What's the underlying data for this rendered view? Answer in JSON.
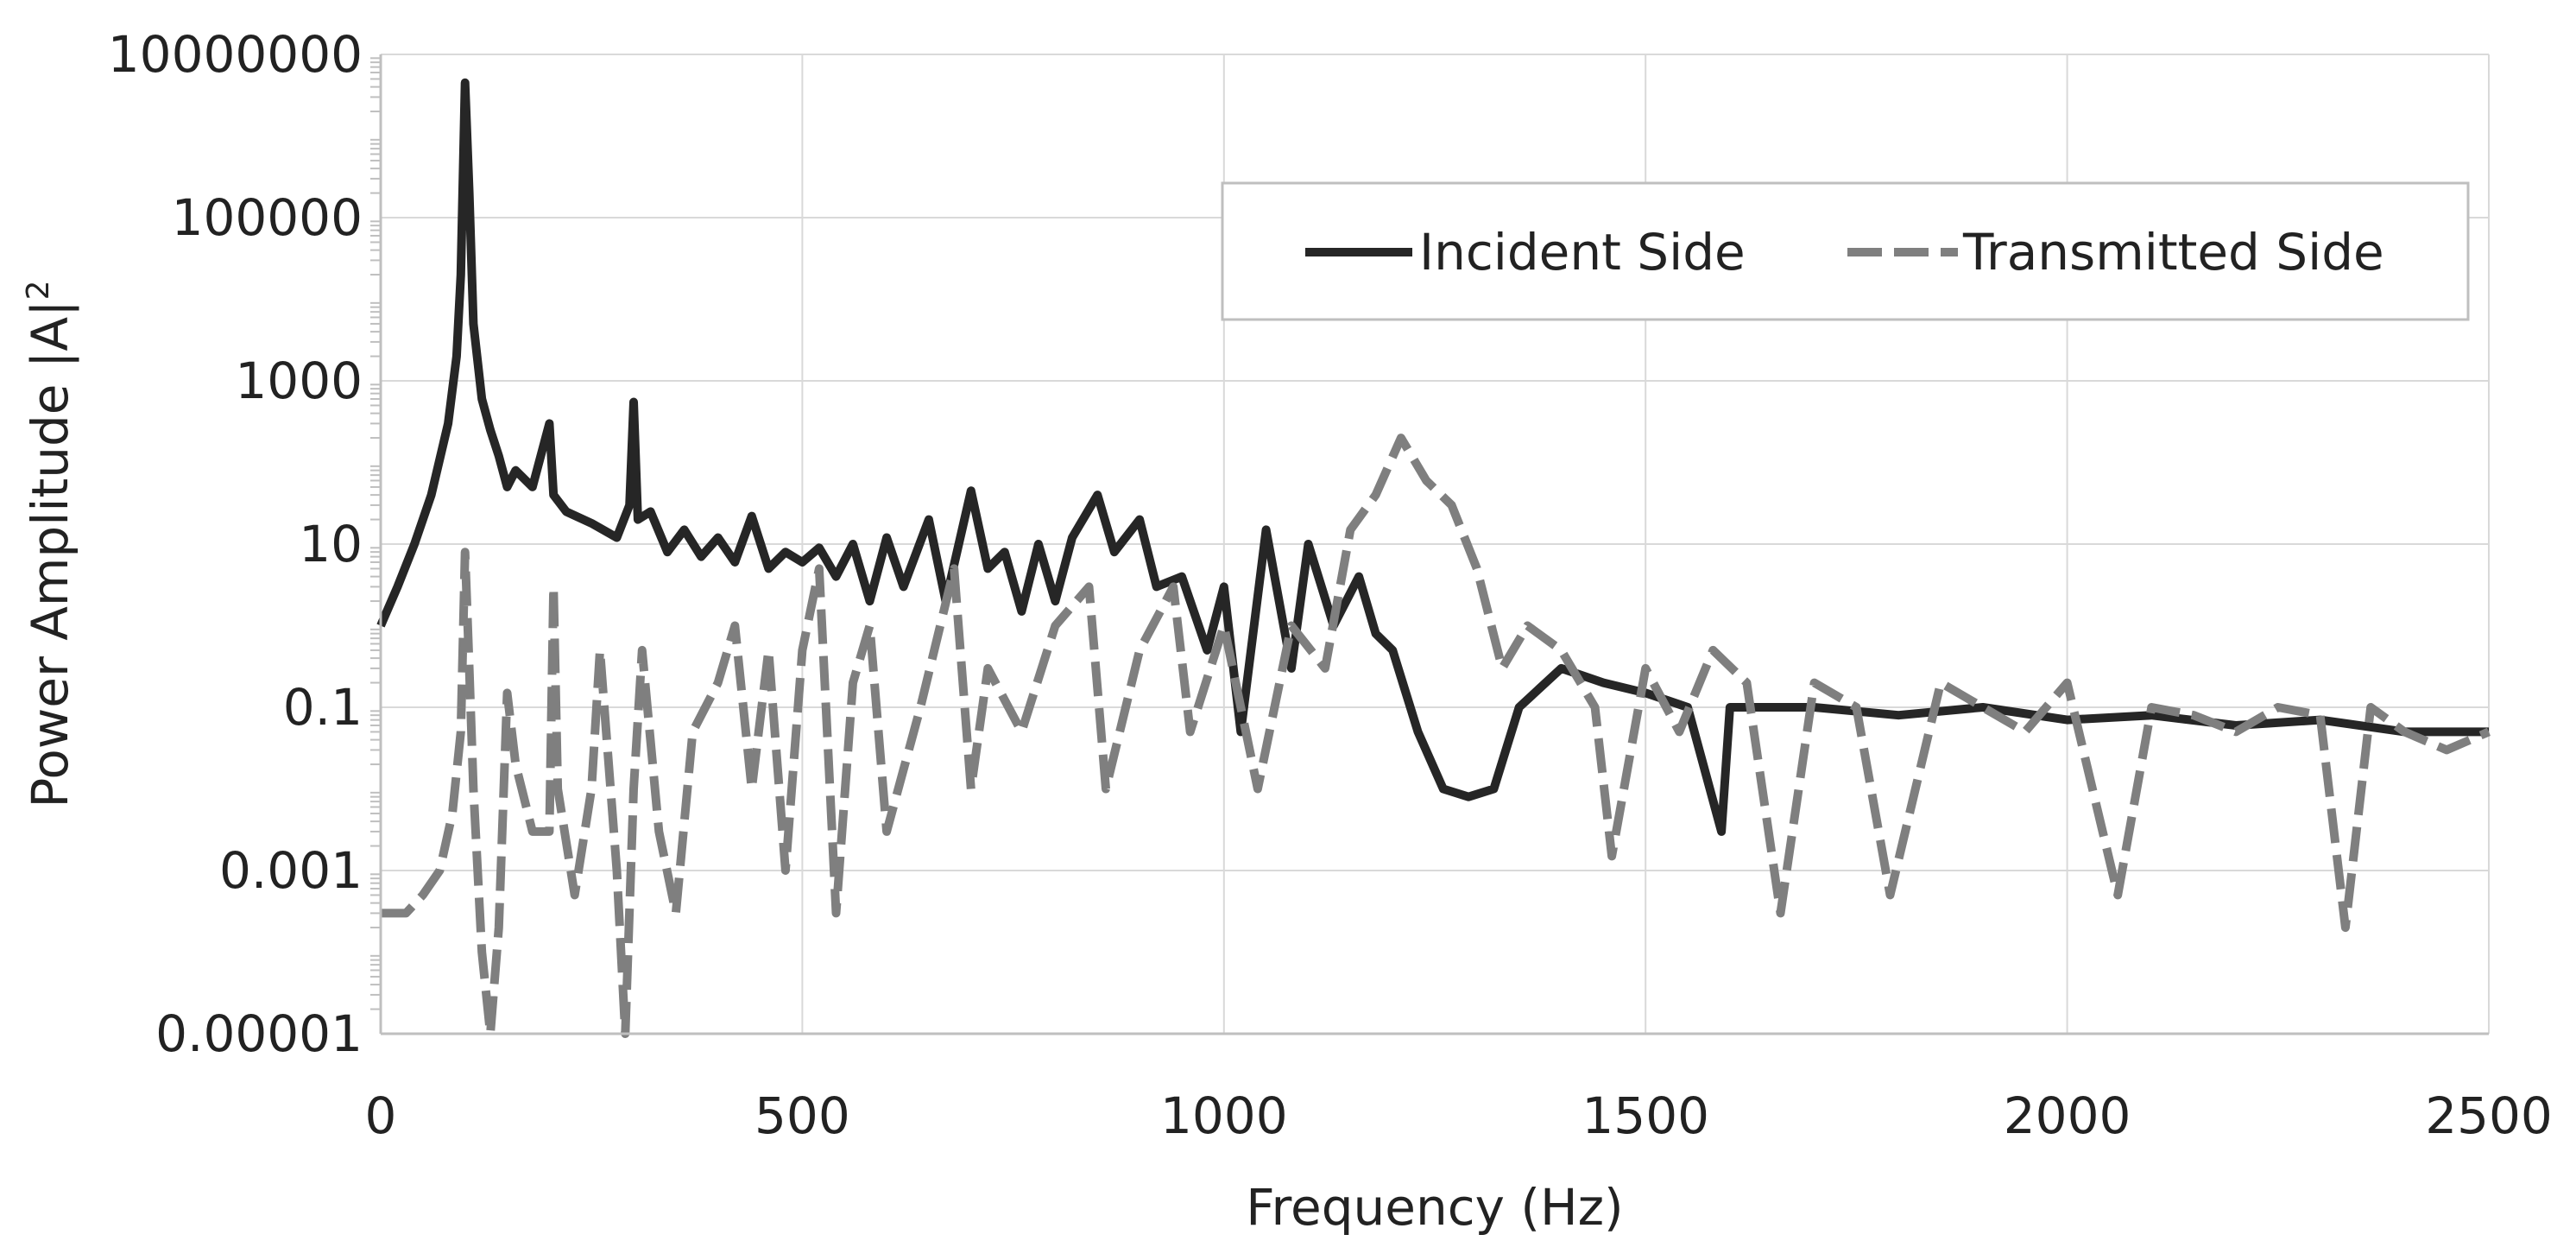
{
  "chart_data": {
    "type": "line",
    "title": "",
    "xlabel": "Frequency (Hz)",
    "ylabel": "Power Amplitude |A|",
    "ylabel_superscript": "2",
    "xlim": [
      0,
      2500
    ],
    "ylim": [
      1e-05,
      10000000
    ],
    "yscale": "log",
    "x_ticks": [
      0,
      500,
      1000,
      1500,
      2000,
      2500
    ],
    "x_tick_labels": [
      "0",
      "500",
      "1000",
      "1500",
      "2000",
      "2500"
    ],
    "y_ticks": [
      1e-05,
      0.001,
      0.1,
      10,
      1000,
      100000,
      10000000
    ],
    "y_tick_labels": [
      "0.00001",
      "0.001",
      "0.1",
      "10",
      "1000",
      "100000",
      "10000000"
    ],
    "grid": true,
    "legend_position": "top-right",
    "series": [
      {
        "name": "Incident Side",
        "color": "#262626",
        "style": "solid",
        "points": [
          [
            0,
            1.0
          ],
          [
            20,
            3
          ],
          [
            40,
            10
          ],
          [
            60,
            40
          ],
          [
            80,
            300
          ],
          [
            90,
            2000
          ],
          [
            95,
            20000
          ],
          [
            100,
            4500000
          ],
          [
            105,
            200000
          ],
          [
            110,
            5000
          ],
          [
            120,
            600
          ],
          [
            130,
            250
          ],
          [
            140,
            120
          ],
          [
            150,
            50
          ],
          [
            160,
            80
          ],
          [
            180,
            50
          ],
          [
            200,
            300
          ],
          [
            205,
            40
          ],
          [
            220,
            25
          ],
          [
            250,
            18
          ],
          [
            280,
            12
          ],
          [
            295,
            30
          ],
          [
            300,
            550
          ],
          [
            305,
            20
          ],
          [
            320,
            25
          ],
          [
            340,
            8
          ],
          [
            360,
            15
          ],
          [
            380,
            7
          ],
          [
            400,
            12
          ],
          [
            420,
            6
          ],
          [
            440,
            22
          ],
          [
            460,
            5
          ],
          [
            480,
            8
          ],
          [
            500,
            6
          ],
          [
            520,
            9
          ],
          [
            540,
            4
          ],
          [
            560,
            10
          ],
          [
            580,
            2
          ],
          [
            600,
            12
          ],
          [
            620,
            3
          ],
          [
            650,
            20
          ],
          [
            670,
            2
          ],
          [
            700,
            45
          ],
          [
            720,
            5
          ],
          [
            740,
            8
          ],
          [
            760,
            1.5
          ],
          [
            780,
            10
          ],
          [
            800,
            2
          ],
          [
            820,
            12
          ],
          [
            850,
            40
          ],
          [
            870,
            8
          ],
          [
            900,
            20
          ],
          [
            920,
            3
          ],
          [
            950,
            4
          ],
          [
            980,
            0.5
          ],
          [
            1000,
            3
          ],
          [
            1020,
            0.05
          ],
          [
            1050,
            15
          ],
          [
            1080,
            0.3
          ],
          [
            1100,
            10
          ],
          [
            1130,
            1
          ],
          [
            1160,
            4
          ],
          [
            1180,
            0.8
          ],
          [
            1200,
            0.5
          ],
          [
            1230,
            0.05
          ],
          [
            1260,
            0.01
          ],
          [
            1290,
            0.008
          ],
          [
            1320,
            0.01
          ],
          [
            1350,
            0.1
          ],
          [
            1400,
            0.3
          ],
          [
            1450,
            0.2
          ],
          [
            1500,
            0.15
          ],
          [
            1550,
            0.1
          ],
          [
            1590,
            0.003
          ],
          [
            1600,
            0.1
          ],
          [
            1700,
            0.1
          ],
          [
            1800,
            0.08
          ],
          [
            1900,
            0.1
          ],
          [
            2000,
            0.07
          ],
          [
            2100,
            0.08
          ],
          [
            2200,
            0.06
          ],
          [
            2300,
            0.07
          ],
          [
            2400,
            0.05
          ],
          [
            2500,
            0.05
          ]
        ]
      },
      {
        "name": "Transmitted Side",
        "color": "#7f7f7f",
        "style": "dashed",
        "points": [
          [
            0,
            0.0003
          ],
          [
            30,
            0.0003
          ],
          [
            50,
            0.0005
          ],
          [
            70,
            0.001
          ],
          [
            85,
            0.005
          ],
          [
            95,
            0.05
          ],
          [
            100,
            8
          ],
          [
            105,
            0.3
          ],
          [
            110,
            0.01
          ],
          [
            120,
            0.0001
          ],
          [
            130,
            1e-05
          ],
          [
            140,
            0.0002
          ],
          [
            150,
            0.15
          ],
          [
            160,
            0.02
          ],
          [
            180,
            0.003
          ],
          [
            200,
            0.003
          ],
          [
            205,
            3
          ],
          [
            210,
            0.01
          ],
          [
            230,
            0.0005
          ],
          [
            250,
            0.01
          ],
          [
            260,
            0.5
          ],
          [
            280,
            0.001
          ],
          [
            290,
            1e-05
          ],
          [
            300,
            0.01
          ],
          [
            310,
            0.5
          ],
          [
            330,
            0.003
          ],
          [
            350,
            0.0003
          ],
          [
            370,
            0.05
          ],
          [
            400,
            0.2
          ],
          [
            420,
            1
          ],
          [
            440,
            0.01
          ],
          [
            460,
            0.5
          ],
          [
            480,
            0.001
          ],
          [
            500,
            0.5
          ],
          [
            520,
            5
          ],
          [
            540,
            0.0003
          ],
          [
            560,
            0.2
          ],
          [
            580,
            1
          ],
          [
            600,
            0.003
          ],
          [
            640,
            0.1
          ],
          [
            680,
            5
          ],
          [
            700,
            0.01
          ],
          [
            720,
            0.3
          ],
          [
            760,
            0.05
          ],
          [
            800,
            1
          ],
          [
            840,
            3
          ],
          [
            860,
            0.01
          ],
          [
            900,
            0.5
          ],
          [
            940,
            3
          ],
          [
            960,
            0.05
          ],
          [
            1000,
            1
          ],
          [
            1040,
            0.01
          ],
          [
            1080,
            1
          ],
          [
            1120,
            0.3
          ],
          [
            1150,
            15
          ],
          [
            1180,
            40
          ],
          [
            1210,
            200
          ],
          [
            1240,
            60
          ],
          [
            1270,
            30
          ],
          [
            1300,
            5
          ],
          [
            1330,
            0.3
          ],
          [
            1360,
            1
          ],
          [
            1400,
            0.5
          ],
          [
            1440,
            0.1
          ],
          [
            1460,
            0.0015
          ],
          [
            1500,
            0.3
          ],
          [
            1540,
            0.05
          ],
          [
            1580,
            0.5
          ],
          [
            1620,
            0.2
          ],
          [
            1660,
            0.0003
          ],
          [
            1700,
            0.2
          ],
          [
            1750,
            0.1
          ],
          [
            1790,
            0.0005
          ],
          [
            1850,
            0.2
          ],
          [
            1900,
            0.1
          ],
          [
            1950,
            0.05
          ],
          [
            2000,
            0.2
          ],
          [
            2060,
            0.0005
          ],
          [
            2100,
            0.1
          ],
          [
            2150,
            0.08
          ],
          [
            2200,
            0.05
          ],
          [
            2250,
            0.1
          ],
          [
            2300,
            0.08
          ],
          [
            2330,
            0.0002
          ],
          [
            2360,
            0.1
          ],
          [
            2400,
            0.05
          ],
          [
            2450,
            0.03
          ],
          [
            2500,
            0.05
          ]
        ]
      }
    ]
  }
}
